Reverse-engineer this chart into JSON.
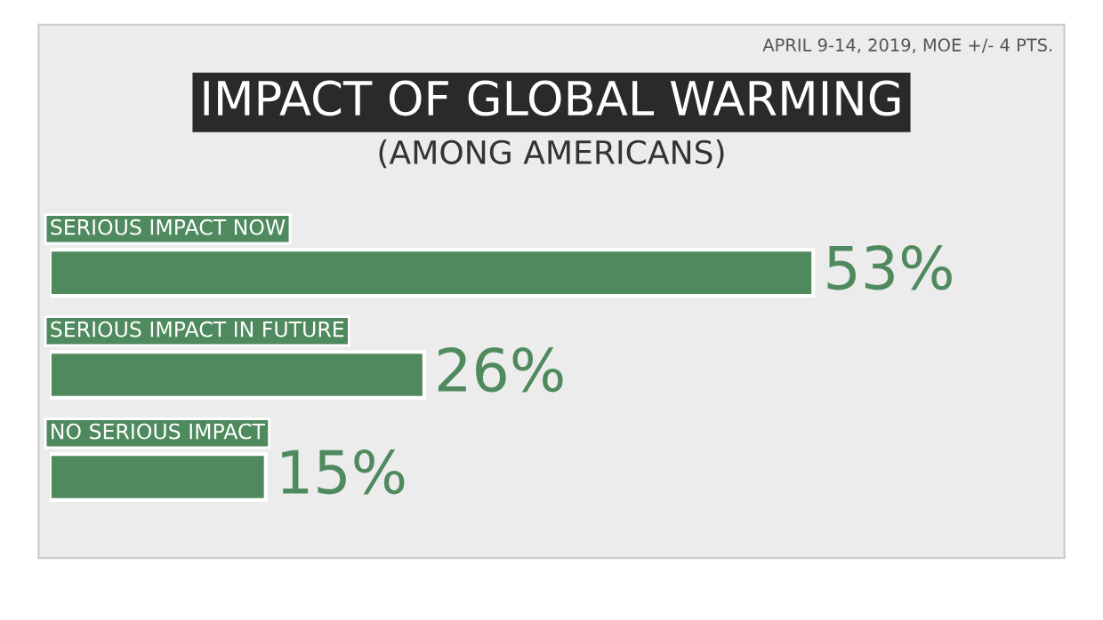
{
  "chart_data": {
    "type": "bar",
    "orientation": "horizontal",
    "title": "IMPACT OF GLOBAL WARMING",
    "subtitle": "(AMONG AMERICANS)",
    "annotations": [
      "APRIL 9-14, 2019, MOE +/- 4 PTS."
    ],
    "categories": [
      "SERIOUS IMPACT NOW",
      "SERIOUS IMPACT IN FUTURE",
      "NO SERIOUS IMPACT"
    ],
    "values": [
      53,
      26,
      15
    ],
    "value_labels": [
      "53%",
      "26%",
      "15%"
    ],
    "color": "#4f8a5e",
    "tick_labels": false
  }
}
